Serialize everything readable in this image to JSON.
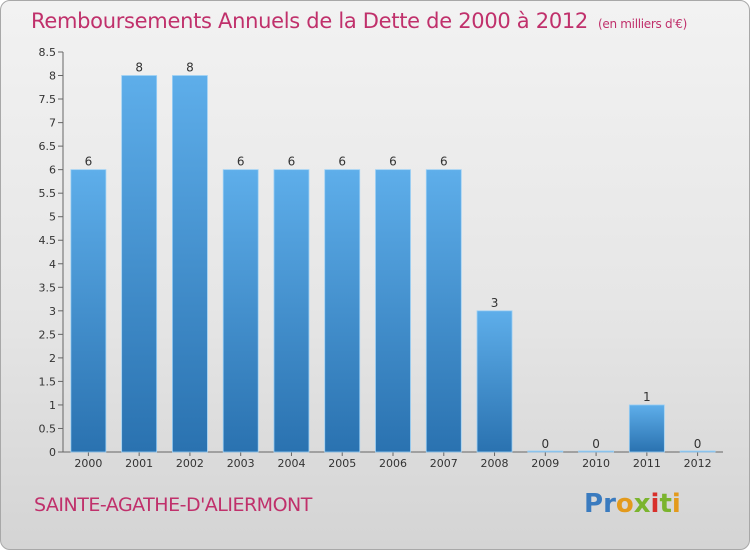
{
  "title": "Remboursements Annuels de la Dette de 2000 à 2012",
  "unit": "(en milliers d'€)",
  "commune": "SAINTE-AGATHE-D'ALIERMONT",
  "logo": {
    "letters": [
      "P",
      "r",
      "o",
      "x",
      "i",
      "t",
      "i"
    ],
    "colors": [
      "#3a7bbf",
      "#3a7bbf",
      "#e39a1c",
      "#7bb42e",
      "#d8302b",
      "#7bb42e",
      "#e39a1c"
    ]
  },
  "colors": {
    "bar_top": "#5eaeea",
    "bar_bottom": "#2a72b0",
    "title": "#c0306b"
  },
  "chart_data": {
    "type": "bar",
    "categories": [
      "2000",
      "2001",
      "2002",
      "2003",
      "2004",
      "2005",
      "2006",
      "2007",
      "2008",
      "2009",
      "2010",
      "2011",
      "2012"
    ],
    "values": [
      6,
      8,
      8,
      6,
      6,
      6,
      6,
      6,
      3,
      0,
      0,
      1,
      0
    ],
    "ylim": [
      0,
      8.5
    ],
    "yticks": [
      "0",
      "0.5",
      "1",
      "1.5",
      "2",
      "2.5",
      "3",
      "3.5",
      "4",
      "4.5",
      "5",
      "5.5",
      "6",
      "6.5",
      "7",
      "7.5",
      "8",
      "8.5"
    ],
    "grid": false
  }
}
